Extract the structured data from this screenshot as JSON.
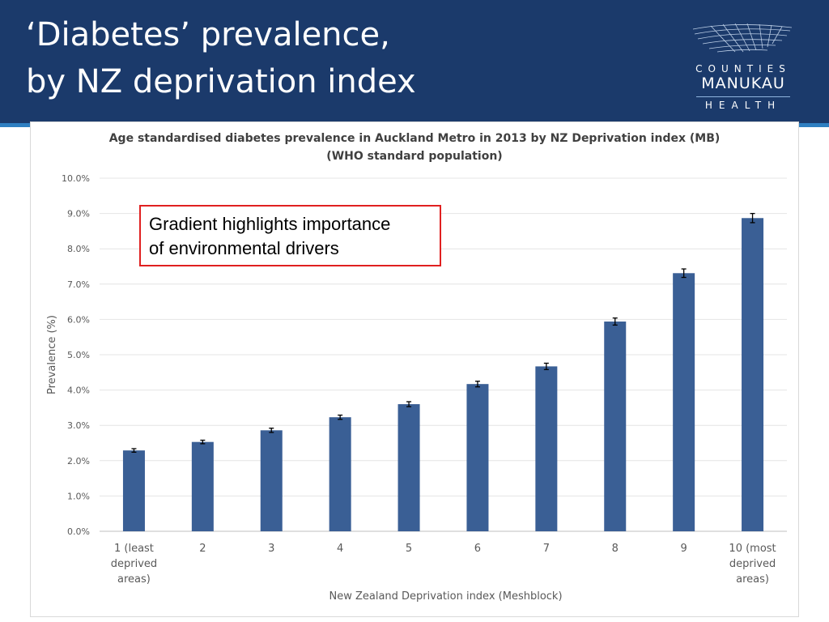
{
  "slide": {
    "title_line1": "‘Diabetes’ prevalence,",
    "title_line2": "by NZ deprivation index"
  },
  "logo": {
    "word1": "COUNTIES",
    "word2": "MANUKAU",
    "word3": "HEALTH"
  },
  "callout": {
    "line1": "Gradient highlights importance",
    "line2": "of environmental drivers"
  },
  "colors": {
    "header_bg": "#1b3a6b",
    "header_rule": "#2f7fc1",
    "bar": "#3a5f95",
    "callout_border": "#e02020"
  },
  "chart_data": {
    "type": "bar",
    "title_line1": "Age standardised diabetes prevalence in Auckland Metro in 2013 by NZ Deprivation index (MB)",
    "title_line2": "(WHO standard population)",
    "xlabel": "New Zealand Deprivation index (Meshblock)",
    "ylabel": "Prevalence (%)",
    "categories": [
      [
        "1 (least",
        "deprived",
        "areas)"
      ],
      [
        "2"
      ],
      [
        "3"
      ],
      [
        "4"
      ],
      [
        "5"
      ],
      [
        "6"
      ],
      [
        "7"
      ],
      [
        "8"
      ],
      [
        "9"
      ],
      [
        "10 (most",
        "deprived",
        "areas)"
      ]
    ],
    "values": [
      2.29,
      2.53,
      2.86,
      3.23,
      3.6,
      4.17,
      4.67,
      5.94,
      7.31,
      8.87
    ],
    "error": [
      0.05,
      0.05,
      0.06,
      0.06,
      0.07,
      0.08,
      0.09,
      0.1,
      0.12,
      0.13
    ],
    "ylim": [
      0,
      10
    ],
    "yticks": [
      "0.0%",
      "1.0%",
      "2.0%",
      "3.0%",
      "4.0%",
      "5.0%",
      "6.0%",
      "7.0%",
      "8.0%",
      "9.0%",
      "10.0%"
    ],
    "grid": true,
    "legend": "none"
  }
}
